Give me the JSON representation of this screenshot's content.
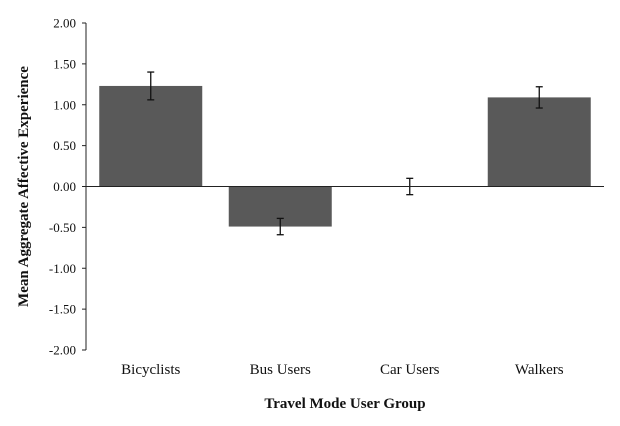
{
  "chart_data": {
    "type": "bar",
    "title": "",
    "xlabel": "Travel Mode User Group",
    "ylabel": "Mean Aggregate Affective Experience",
    "categories": [
      "Bicyclists",
      "Bus Users",
      "Car Users",
      "Walkers"
    ],
    "values": [
      1.23,
      -0.49,
      0.0,
      1.09
    ],
    "error_bars": [
      0.17,
      0.1,
      0.1,
      0.13
    ],
    "ylim": [
      -2.0,
      2.0
    ],
    "yticks": [
      "2.00",
      "1.50",
      "1.00",
      "0.50",
      "0.00",
      "-0.50",
      "-1.00",
      "-1.50",
      "-2.00"
    ],
    "grid": false,
    "legend": "none",
    "bar_color": "#595959"
  }
}
